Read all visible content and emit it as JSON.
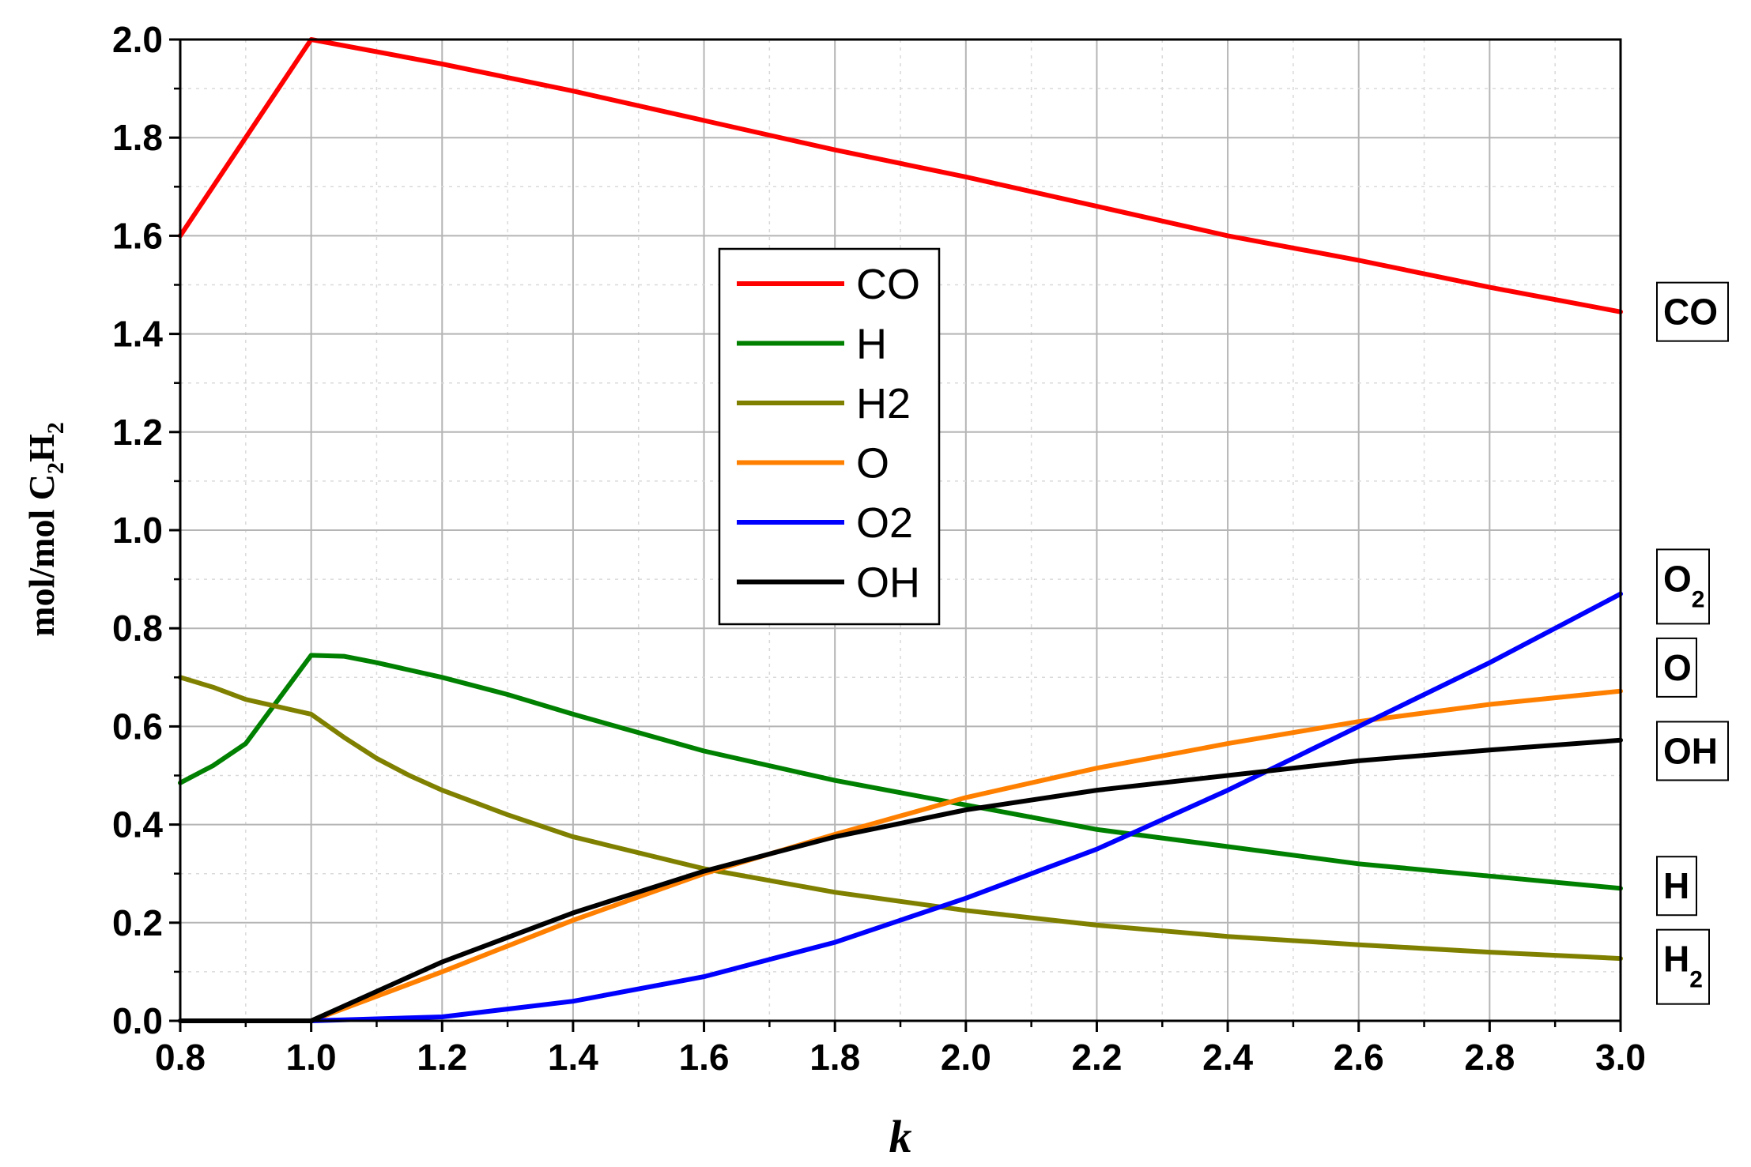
{
  "chart_data": {
    "type": "line",
    "xlabel": "k",
    "ylabel": "mol/mol C2H2",
    "xlim": [
      0.8,
      3.0
    ],
    "ylim": [
      0.0,
      2.0
    ],
    "x_ticks": [
      "0.8",
      "1.0",
      "1.2",
      "1.4",
      "1.6",
      "1.8",
      "2.0",
      "2.2",
      "2.4",
      "2.6",
      "2.8",
      "3.0"
    ],
    "y_ticks": [
      "0.0",
      "0.2",
      "0.4",
      "0.6",
      "0.8",
      "1.0",
      "1.2",
      "1.4",
      "1.6",
      "1.8",
      "2.0"
    ],
    "grid": true,
    "legend_position": "center-left",
    "series": [
      {
        "name": "CO",
        "color": "#ff0000",
        "x": [
          0.8,
          1.0,
          1.2,
          1.4,
          1.6,
          1.8,
          2.0,
          2.2,
          2.4,
          2.6,
          2.8,
          3.0
        ],
        "y": [
          1.6,
          2.0,
          1.95,
          1.895,
          1.835,
          1.775,
          1.72,
          1.66,
          1.6,
          1.55,
          1.495,
          1.445
        ]
      },
      {
        "name": "H",
        "color": "#008000",
        "x": [
          0.8,
          0.85,
          0.9,
          1.0,
          1.05,
          1.1,
          1.15,
          1.2,
          1.3,
          1.4,
          1.6,
          1.8,
          2.0,
          2.2,
          2.4,
          2.6,
          2.8,
          3.0
        ],
        "y": [
          0.485,
          0.52,
          0.565,
          0.745,
          0.743,
          0.73,
          0.715,
          0.7,
          0.665,
          0.625,
          0.55,
          0.49,
          0.44,
          0.39,
          0.355,
          0.32,
          0.295,
          0.27
        ]
      },
      {
        "name": "H2",
        "color": "#808000",
        "x": [
          0.8,
          0.85,
          0.9,
          1.0,
          1.05,
          1.1,
          1.15,
          1.2,
          1.3,
          1.4,
          1.6,
          1.8,
          2.0,
          2.2,
          2.4,
          2.6,
          2.8,
          3.0
        ],
        "y": [
          0.7,
          0.68,
          0.655,
          0.625,
          0.578,
          0.535,
          0.5,
          0.47,
          0.42,
          0.375,
          0.31,
          0.262,
          0.225,
          0.195,
          0.172,
          0.155,
          0.14,
          0.127
        ]
      },
      {
        "name": "O",
        "color": "#ff8000",
        "x": [
          0.8,
          1.0,
          1.2,
          1.4,
          1.6,
          1.8,
          2.0,
          2.2,
          2.4,
          2.6,
          2.8,
          3.0
        ],
        "y": [
          0.0,
          0.0,
          0.1,
          0.205,
          0.3,
          0.38,
          0.455,
          0.515,
          0.565,
          0.61,
          0.645,
          0.672
        ]
      },
      {
        "name": "O2",
        "color": "#0000ff",
        "x": [
          0.8,
          1.0,
          1.2,
          1.4,
          1.6,
          1.8,
          2.0,
          2.2,
          2.4,
          2.6,
          2.8,
          3.0
        ],
        "y": [
          0.0,
          0.0,
          0.008,
          0.04,
          0.09,
          0.16,
          0.25,
          0.35,
          0.47,
          0.6,
          0.73,
          0.87
        ]
      },
      {
        "name": "OH",
        "color": "#000000",
        "x": [
          0.8,
          1.0,
          1.2,
          1.4,
          1.6,
          1.8,
          2.0,
          2.2,
          2.4,
          2.6,
          2.8,
          3.0
        ],
        "y": [
          0.0,
          0.0,
          0.12,
          0.22,
          0.305,
          0.375,
          0.43,
          0.47,
          0.5,
          0.53,
          0.552,
          0.572
        ]
      }
    ],
    "end_labels": [
      {
        "base": "CO",
        "sub": "",
        "y": 1.445
      },
      {
        "base": "O",
        "sub": "2",
        "y": 0.885
      },
      {
        "base": "O",
        "sub": "",
        "y": 0.72
      },
      {
        "base": "OH",
        "sub": "",
        "y": 0.55
      },
      {
        "base": "H",
        "sub": "",
        "y": 0.275
      },
      {
        "base": "H",
        "sub": "2",
        "y": 0.11
      }
    ]
  }
}
